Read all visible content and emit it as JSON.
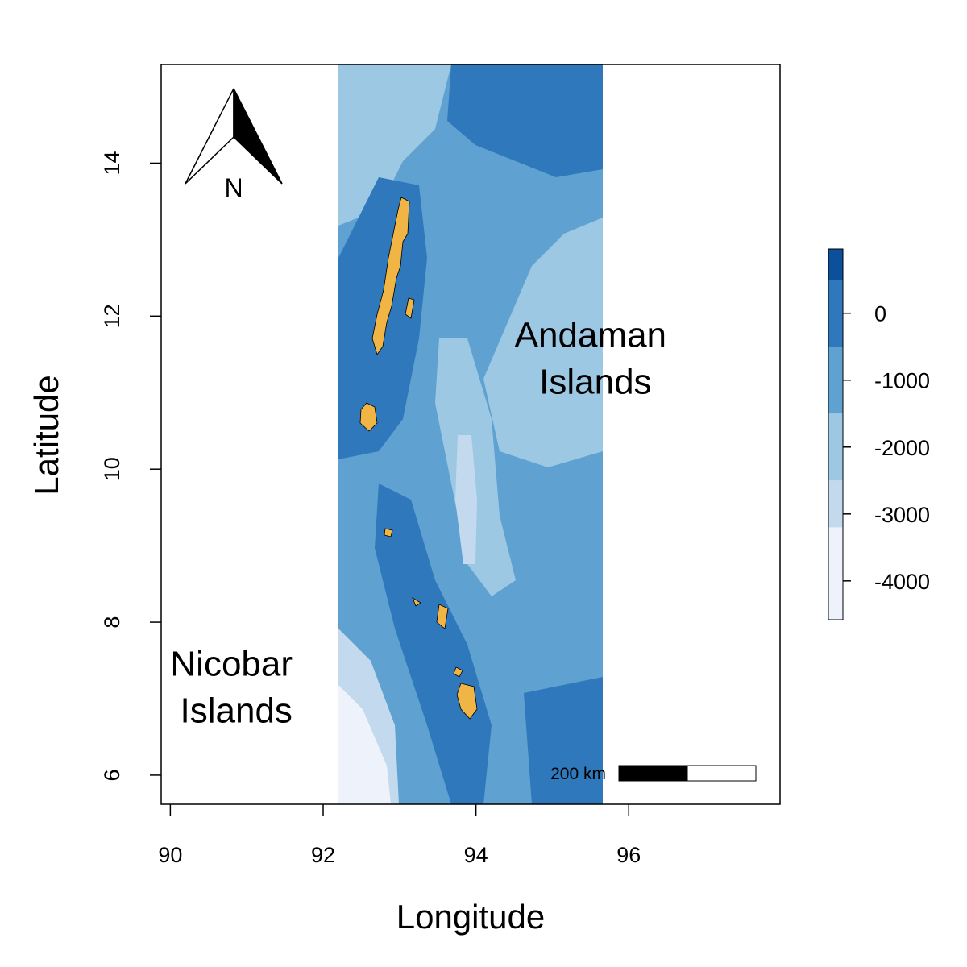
{
  "chart_data": {
    "type": "map",
    "xlabel": "Longitude",
    "ylabel": "Latitude",
    "xlim": [
      89.88,
      97.98
    ],
    "ylim": [
      5.62,
      15.29
    ],
    "xticks": [
      90,
      92,
      94,
      96
    ],
    "yticks": [
      6,
      8,
      10,
      12,
      14
    ],
    "annotations": [
      {
        "lines": [
          "Andaman",
          "Islands"
        ],
        "lon": 95.5,
        "lat": 11.6
      },
      {
        "lines": [
          "Nicobar",
          "Islands"
        ],
        "lon": 90.8,
        "lat": 7.3
      }
    ],
    "north_label": "N",
    "scale_bar_label": "200 km",
    "colorbar": {
      "range": [
        -4580,
        960
      ],
      "ticks": [
        0,
        -1000,
        -2000,
        -3000,
        -4000
      ],
      "breaks": [
        -4580,
        -3200,
        -2500,
        -1500,
        -500,
        500,
        960
      ],
      "colors": [
        "#eef3fb",
        "#c3d9ed",
        "#9dc8e3",
        "#5fa2d2",
        "#2e78bb",
        "#0c4f9b"
      ]
    },
    "land_color": "#f0b545"
  }
}
